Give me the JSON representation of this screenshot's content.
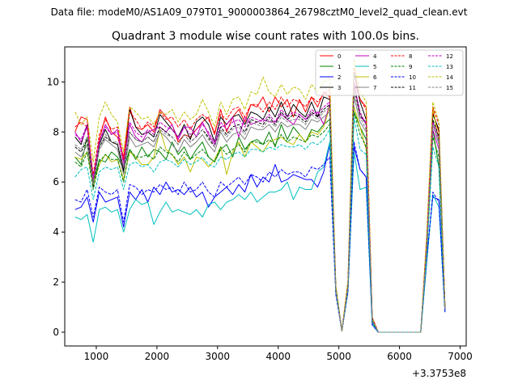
{
  "figure": {
    "suptitle": "Data file: modeM0/AS1A09_079T01_9000003864_26798cztM0_level2_quad_clean.evt",
    "title": "Quadrant 3 module wise count rates with 100.0s bins.",
    "offset_label": "+3.3753e8"
  },
  "chart_data": {
    "type": "line",
    "title": "Quadrant 3 module wise count rates with 100.0s bins.",
    "xlabel": "",
    "ylabel": "",
    "x_offset": 337530000,
    "xlim": [
      480,
      7100
    ],
    "ylim": [
      -0.55,
      11.4
    ],
    "xticks": [
      1000,
      2000,
      3000,
      4000,
      5000,
      6000,
      7000
    ],
    "xtick_labels": [
      "1000",
      "2000",
      "3000",
      "4000",
      "5000",
      "6000",
      "7000"
    ],
    "yticks": [
      0,
      2,
      4,
      6,
      8,
      10
    ],
    "ytick_labels": [
      "0",
      "2",
      "4",
      "6",
      "8",
      "10"
    ],
    "grid": false,
    "legend_position": "top-right",
    "legend_columns": 4,
    "x": [
      650,
      750,
      850,
      950,
      1050,
      1150,
      1250,
      1350,
      1450,
      1550,
      1650,
      1750,
      1850,
      1950,
      2050,
      2150,
      2250,
      2350,
      2450,
      2550,
      2650,
      2750,
      2850,
      2950,
      3050,
      3150,
      3250,
      3350,
      3450,
      3550,
      3650,
      3750,
      3850,
      3950,
      4050,
      4150,
      4250,
      4350,
      4450,
      4550,
      4650,
      4750,
      4850,
      4950,
      5050,
      5150,
      5250,
      5350,
      5450,
      5550,
      5650,
      5750,
      5850,
      5950,
      6050,
      6150,
      6250,
      6350,
      6450,
      6550,
      6650,
      6750
    ],
    "series": [
      {
        "name": "0",
        "color": "#ff0000",
        "dash": "solid",
        "values": [
          8.0,
          8.6,
          8.5,
          6.0,
          7.7,
          8.6,
          8.0,
          7.8,
          7.0,
          9.0,
          8.2,
          8.1,
          8.3,
          8.0,
          8.9,
          8.6,
          8.3,
          7.6,
          7.9,
          7.8,
          8.1,
          8.4,
          8.6,
          7.9,
          8.9,
          8.0,
          8.6,
          8.9,
          8.4,
          9.1,
          9.0,
          9.4,
          8.8,
          9.4,
          9.0,
          9.3,
          8.6,
          9.3,
          8.8,
          9.4,
          9.0,
          9.6,
          9.4,
          1.8,
          0.05,
          2.0,
          10.0,
          9.3,
          9.0,
          0.6,
          0.0,
          0.0,
          0.0,
          0.0,
          0.0,
          0.0,
          0.0,
          0.0,
          3.8,
          8.8,
          8.0,
          1.0
        ]
      },
      {
        "name": "1",
        "color": "#008000",
        "dash": "solid",
        "values": [
          7.0,
          6.7,
          7.8,
          5.9,
          6.9,
          6.8,
          7.2,
          7.0,
          6.5,
          7.3,
          6.9,
          7.4,
          7.0,
          7.3,
          7.2,
          6.9,
          7.6,
          7.1,
          7.4,
          6.9,
          7.3,
          7.6,
          7.0,
          6.8,
          7.3,
          7.5,
          7.0,
          7.8,
          7.3,
          7.6,
          7.7,
          7.5,
          8.0,
          7.4,
          8.3,
          7.7,
          8.2,
          7.9,
          7.6,
          8.1,
          8.0,
          8.3,
          8.5,
          1.7,
          0.05,
          1.8,
          8.8,
          8.2,
          7.7,
          0.5,
          0.0,
          0.0,
          0.0,
          0.0,
          0.0,
          0.0,
          0.0,
          0.0,
          3.3,
          8.1,
          6.6,
          0.9
        ]
      },
      {
        "name": "2",
        "color": "#0000ff",
        "dash": "solid",
        "values": [
          4.9,
          5.0,
          5.4,
          4.4,
          5.6,
          5.2,
          5.3,
          5.4,
          4.2,
          5.6,
          5.3,
          5.7,
          5.2,
          5.8,
          5.5,
          6.0,
          5.6,
          5.7,
          5.5,
          5.8,
          5.4,
          5.6,
          5.0,
          5.4,
          5.6,
          5.8,
          5.5,
          5.9,
          5.6,
          6.3,
          5.8,
          6.2,
          6.0,
          6.7,
          6.0,
          6.1,
          6.3,
          6.2,
          6.1,
          6.1,
          5.8,
          6.4,
          7.5,
          1.7,
          0.05,
          1.7,
          7.4,
          6.5,
          6.2,
          0.3,
          0.0,
          0.0,
          0.0,
          0.0,
          0.0,
          0.0,
          0.0,
          0.0,
          3.0,
          5.4,
          5.3,
          0.8
        ]
      },
      {
        "name": "3",
        "color": "#000000",
        "dash": "solid",
        "values": [
          7.8,
          7.5,
          8.3,
          5.8,
          7.5,
          8.1,
          7.6,
          7.5,
          6.4,
          8.9,
          8.2,
          7.9,
          8.0,
          7.8,
          8.7,
          8.4,
          8.1,
          7.8,
          8.3,
          7.7,
          8.4,
          8.6,
          8.3,
          7.6,
          8.6,
          8.3,
          8.6,
          8.7,
          8.3,
          8.8,
          8.7,
          8.5,
          9.0,
          8.6,
          9.2,
          8.6,
          9.1,
          8.8,
          8.6,
          9.2,
          8.6,
          9.4,
          9.3,
          1.8,
          0.05,
          1.9,
          10.4,
          9.2,
          8.5,
          0.5,
          0.0,
          0.0,
          0.0,
          0.0,
          0.0,
          0.0,
          0.0,
          0.0,
          3.6,
          8.7,
          8.1,
          1.0
        ]
      },
      {
        "name": "4",
        "color": "#bf00bf",
        "dash": "solid",
        "values": [
          8.0,
          7.6,
          8.2,
          6.2,
          7.6,
          8.3,
          7.9,
          8.1,
          6.8,
          8.3,
          7.8,
          7.6,
          8.0,
          8.1,
          8.2,
          8.0,
          8.3,
          7.7,
          8.2,
          8.2,
          7.8,
          8.4,
          7.9,
          7.5,
          8.2,
          8.3,
          8.6,
          7.8,
          8.6,
          8.3,
          8.4,
          8.5,
          8.4,
          8.4,
          8.7,
          8.5,
          8.3,
          8.7,
          8.5,
          8.7,
          8.8,
          8.3,
          9.1,
          1.7,
          0.05,
          1.8,
          10.0,
          8.6,
          8.4,
          0.5,
          0.0,
          0.0,
          0.0,
          0.0,
          0.0,
          0.0,
          0.0,
          0.0,
          3.4,
          8.1,
          7.3,
          0.9
        ]
      },
      {
        "name": "5",
        "color": "#00bfbf",
        "dash": "solid",
        "values": [
          4.6,
          4.5,
          4.7,
          3.6,
          4.9,
          5.0,
          4.8,
          4.9,
          4.0,
          4.9,
          5.3,
          5.1,
          5.2,
          4.3,
          4.8,
          5.2,
          4.8,
          4.9,
          4.8,
          4.7,
          4.9,
          4.6,
          5.1,
          5.2,
          4.9,
          5.2,
          5.3,
          5.5,
          5.3,
          5.6,
          5.2,
          5.4,
          5.6,
          5.6,
          5.7,
          6.0,
          5.3,
          5.8,
          5.7,
          5.7,
          6.4,
          6.6,
          7.6,
          1.6,
          0.05,
          1.6,
          7.2,
          5.7,
          5.8,
          0.3,
          0.0,
          0.0,
          0.0,
          0.0,
          0.0,
          0.0,
          0.0,
          0.0,
          2.8,
          5.5,
          5.0,
          0.8
        ]
      },
      {
        "name": "6",
        "color": "#bfbf00",
        "dash": "solid",
        "values": [
          7.0,
          6.9,
          7.2,
          5.9,
          6.7,
          7.1,
          6.8,
          6.9,
          6.1,
          7.2,
          7.0,
          6.7,
          6.7,
          7.0,
          8.1,
          7.3,
          7.1,
          6.7,
          7.0,
          6.4,
          7.0,
          6.9,
          6.6,
          6.9,
          7.4,
          6.3,
          7.2,
          7.6,
          7.0,
          7.6,
          7.4,
          7.2,
          7.6,
          7.7,
          7.8,
          7.6,
          7.5,
          7.9,
          7.6,
          8.0,
          7.9,
          8.2,
          9.0,
          1.6,
          0.05,
          1.7,
          9.0,
          8.2,
          7.3,
          0.4,
          0.0,
          0.0,
          0.0,
          0.0,
          0.0,
          0.0,
          0.0,
          0.0,
          3.2,
          9.0,
          7.6,
          0.9
        ]
      },
      {
        "name": "7",
        "color": "#808080",
        "dash": "solid",
        "values": [
          7.2,
          7.0,
          7.5,
          5.9,
          7.3,
          7.7,
          7.5,
          7.3,
          6.3,
          7.8,
          7.4,
          7.5,
          7.6,
          7.4,
          8.0,
          7.8,
          7.5,
          7.2,
          7.7,
          7.4,
          7.6,
          7.9,
          7.5,
          7.2,
          8.0,
          7.6,
          7.9,
          8.0,
          7.7,
          8.2,
          8.1,
          8.1,
          8.3,
          8.0,
          8.4,
          8.2,
          8.3,
          8.3,
          8.1,
          8.5,
          8.4,
          8.6,
          8.8,
          1.7,
          0.05,
          1.8,
          9.4,
          8.4,
          8.0,
          0.5,
          0.0,
          0.0,
          0.0,
          0.0,
          0.0,
          0.0,
          0.0,
          0.0,
          3.4,
          8.3,
          7.5,
          0.9
        ]
      },
      {
        "name": "8",
        "color": "#ff0000",
        "dash": "dashed",
        "values": [
          8.2,
          8.4,
          8.2,
          6.3,
          7.9,
          8.5,
          8.1,
          8.2,
          6.9,
          8.8,
          8.5,
          8.1,
          8.4,
          8.2,
          8.8,
          8.5,
          8.6,
          8.2,
          8.5,
          8.1,
          8.5,
          8.7,
          8.5,
          8.0,
          8.7,
          8.5,
          8.9,
          9.0,
          8.6,
          9.1,
          9.1,
          8.8,
          9.2,
          8.9,
          9.4,
          9.0,
          9.3,
          9.2,
          9.0,
          9.4,
          9.2,
          9.5,
          9.7,
          1.8,
          0.05,
          2.0,
          10.6,
          9.3,
          8.9,
          0.6,
          0.0,
          0.0,
          0.0,
          0.0,
          0.0,
          0.0,
          0.0,
          0.0,
          3.8,
          9.0,
          8.3,
          1.0
        ]
      },
      {
        "name": "9",
        "color": "#008000",
        "dash": "dashed",
        "values": [
          6.8,
          6.6,
          7.2,
          5.7,
          6.8,
          7.1,
          6.9,
          6.9,
          6.0,
          7.3,
          7.0,
          7.0,
          7.1,
          6.9,
          7.4,
          7.2,
          7.1,
          6.8,
          7.2,
          6.9,
          7.1,
          7.3,
          7.0,
          6.8,
          7.4,
          7.1,
          7.3,
          7.5,
          7.2,
          7.6,
          7.6,
          7.5,
          7.7,
          7.5,
          7.9,
          7.6,
          7.8,
          7.7,
          7.6,
          7.9,
          7.8,
          8.0,
          8.3,
          1.6,
          0.05,
          1.7,
          8.8,
          7.9,
          7.4,
          0.4,
          0.0,
          0.0,
          0.0,
          0.0,
          0.0,
          0.0,
          0.0,
          0.0,
          3.2,
          7.8,
          7.0,
          0.9
        ]
      },
      {
        "name": "10",
        "color": "#0000ff",
        "dash": "dashed",
        "values": [
          5.3,
          5.2,
          5.7,
          4.6,
          5.8,
          5.6,
          5.5,
          5.7,
          4.4,
          5.9,
          5.8,
          5.5,
          5.7,
          5.6,
          5.9,
          5.7,
          5.8,
          5.5,
          6.0,
          5.6,
          5.7,
          6.0,
          5.6,
          5.4,
          6.0,
          5.8,
          6.0,
          6.2,
          5.9,
          6.3,
          6.2,
          6.0,
          6.4,
          6.2,
          6.5,
          6.3,
          6.4,
          6.4,
          6.2,
          6.6,
          6.5,
          6.7,
          7.0,
          1.5,
          0.05,
          1.6,
          7.6,
          6.5,
          6.2,
          0.3,
          0.0,
          0.0,
          0.0,
          0.0,
          0.0,
          0.0,
          0.0,
          0.0,
          2.9,
          5.6,
          5.2,
          0.8
        ]
      },
      {
        "name": "11",
        "color": "#000000",
        "dash": "dashed",
        "values": [
          7.4,
          7.2,
          7.7,
          6.0,
          7.4,
          7.8,
          7.6,
          7.5,
          6.5,
          8.0,
          7.7,
          7.6,
          7.8,
          7.6,
          8.2,
          8.0,
          7.8,
          7.5,
          7.9,
          7.6,
          7.8,
          8.1,
          7.8,
          7.4,
          8.2,
          7.9,
          8.2,
          8.3,
          8.0,
          8.5,
          8.4,
          8.3,
          8.6,
          8.3,
          8.8,
          8.5,
          8.7,
          8.6,
          8.4,
          8.8,
          8.6,
          8.9,
          9.1,
          1.7,
          0.05,
          1.8,
          9.8,
          8.7,
          8.3,
          0.5,
          0.0,
          0.0,
          0.0,
          0.0,
          0.0,
          0.0,
          0.0,
          0.0,
          3.5,
          8.5,
          7.8,
          1.0
        ]
      },
      {
        "name": "12",
        "color": "#bf00bf",
        "dash": "dashed",
        "values": [
          7.9,
          7.7,
          8.3,
          6.1,
          7.6,
          8.2,
          7.9,
          8.0,
          6.6,
          8.4,
          8.0,
          7.8,
          8.1,
          7.9,
          8.4,
          8.2,
          8.1,
          7.8,
          8.2,
          7.9,
          8.1,
          8.3,
          8.0,
          7.6,
          8.4,
          8.1,
          8.4,
          8.5,
          8.2,
          8.6,
          8.5,
          8.4,
          8.7,
          8.4,
          8.9,
          8.6,
          8.8,
          8.7,
          8.5,
          8.9,
          8.7,
          9.0,
          9.2,
          1.7,
          0.05,
          1.8,
          9.9,
          8.8,
          8.3,
          0.5,
          0.0,
          0.0,
          0.0,
          0.0,
          0.0,
          0.0,
          0.0,
          0.0,
          3.5,
          8.4,
          7.7,
          0.9
        ]
      },
      {
        "name": "13",
        "color": "#00bfbf",
        "dash": "dashed",
        "values": [
          6.2,
          6.5,
          6.6,
          5.3,
          6.4,
          6.6,
          6.5,
          6.6,
          5.7,
          6.7,
          6.8,
          6.6,
          6.7,
          6.4,
          6.8,
          6.9,
          6.8,
          6.6,
          6.9,
          6.7,
          6.8,
          7.0,
          6.7,
          6.6,
          7.0,
          6.9,
          7.1,
          7.2,
          7.0,
          7.3,
          7.3,
          7.2,
          7.4,
          7.3,
          7.5,
          7.4,
          7.4,
          7.5,
          7.3,
          7.6,
          7.5,
          7.7,
          8.1,
          1.6,
          0.05,
          1.7,
          8.6,
          7.3,
          7.1,
          0.4,
          0.0,
          0.0,
          0.0,
          0.0,
          0.0,
          0.0,
          0.0,
          0.0,
          3.1,
          7.4,
          6.6,
          0.9
        ]
      },
      {
        "name": "14",
        "color": "#bfbf00",
        "dash": "dashed",
        "values": [
          8.8,
          8.3,
          8.6,
          6.8,
          8.6,
          9.2,
          8.7,
          8.4,
          7.2,
          9.0,
          8.8,
          8.5,
          8.6,
          8.3,
          8.8,
          8.7,
          8.9,
          8.4,
          8.8,
          8.5,
          8.7,
          9.3,
          8.8,
          8.2,
          9.2,
          8.7,
          9.3,
          9.4,
          8.9,
          9.6,
          9.5,
          10.2,
          9.6,
          9.4,
          9.9,
          9.5,
          9.8,
          9.7,
          9.3,
          9.9,
          9.6,
          10.0,
          10.2,
          1.9,
          0.05,
          2.1,
          10.9,
          9.6,
          9.2,
          0.6,
          0.0,
          0.0,
          0.0,
          0.0,
          0.0,
          0.0,
          0.0,
          0.0,
          4.0,
          9.2,
          8.4,
          1.0
        ]
      },
      {
        "name": "15",
        "color": "#808080",
        "dash": "dashed",
        "values": [
          7.5,
          7.3,
          7.8,
          6.0,
          7.4,
          7.9,
          7.6,
          7.6,
          6.6,
          8.0,
          7.7,
          7.6,
          7.8,
          7.6,
          8.1,
          7.9,
          7.8,
          7.5,
          7.9,
          7.6,
          7.8,
          8.1,
          7.7,
          7.4,
          8.1,
          7.8,
          8.1,
          8.2,
          7.9,
          8.4,
          8.3,
          8.2,
          8.5,
          8.2,
          8.6,
          8.4,
          8.5,
          8.5,
          8.3,
          8.7,
          8.5,
          8.8,
          9.0,
          1.7,
          0.05,
          1.8,
          9.6,
          8.6,
          8.1,
          0.5,
          0.0,
          0.0,
          0.0,
          0.0,
          0.0,
          0.0,
          0.0,
          0.0,
          3.4,
          8.3,
          7.6,
          0.9
        ]
      }
    ]
  }
}
